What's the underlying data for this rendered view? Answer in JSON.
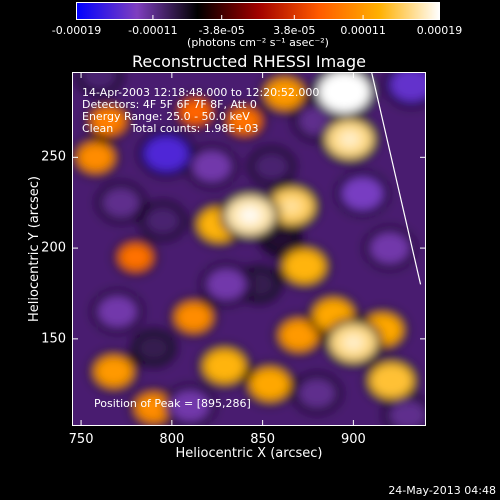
{
  "chart_data": {
    "type": "heatmap",
    "title": "Reconstructed RHESSI Image",
    "xlabel": "Heliocentric X (arcsec)",
    "ylabel": "Heliocentric Y (arcsec)",
    "xlim": [
      745,
      940
    ],
    "ylim": [
      102,
      297
    ],
    "x_ticks": [
      750,
      800,
      850,
      900
    ],
    "y_ticks": [
      150,
      200,
      250
    ],
    "colorbar": {
      "ticks": [
        -0.00019,
        -0.00011,
        -3.8e-05,
        3.8e-05,
        0.00011,
        0.00019
      ],
      "tick_labels": [
        "-0.00019",
        "-0.00011",
        "-3.8e-05",
        "3.8e-05",
        "0.00011",
        "0.00019"
      ],
      "range": [
        -0.00019,
        0.00019
      ],
      "unit_label": "(photons cm⁻² s⁻¹ asec⁻²)",
      "colors": [
        "#0000ff",
        "#7f3fbf",
        "#000000",
        "#a00000",
        "#ff5a00",
        "#ffb000",
        "#ffffff"
      ]
    },
    "annotations": {
      "time_range": "14-Apr-2003 12:18:48.000 to 12:20:52.000",
      "detectors": "Detectors: 4F 5F 6F 7F 8F, Att 0",
      "energy_range": "Energy Range: 25.0 - 50.0 keV",
      "clean_counts": "Clean     Total counts: 1.98E+03",
      "peak": "Position of Peak = [895,286]"
    },
    "limb_line": {
      "x": [
        910,
        937
      ],
      "y": [
        297,
        180
      ]
    },
    "sources": [
      {
        "x": 843,
        "y": 218,
        "value": 0.00017
      },
      {
        "x": 826,
        "y": 213,
        "value": 0.00013
      },
      {
        "x": 866,
        "y": 223,
        "value": 0.00015
      },
      {
        "x": 895,
        "y": 286,
        "value": 0.00019
      },
      {
        "x": 898,
        "y": 260,
        "value": 0.00016
      },
      {
        "x": 900,
        "y": 148,
        "value": 0.00016
      },
      {
        "x": 916,
        "y": 155,
        "value": 0.00012
      },
      {
        "x": 873,
        "y": 190,
        "value": 0.00013
      },
      {
        "x": 889,
        "y": 163,
        "value": 0.00012
      },
      {
        "x": 829,
        "y": 135,
        "value": 0.00013
      },
      {
        "x": 854,
        "y": 125,
        "value": 0.00012
      },
      {
        "x": 870,
        "y": 152,
        "value": 0.00011
      },
      {
        "x": 812,
        "y": 162,
        "value": 0.0001
      },
      {
        "x": 768,
        "y": 132,
        "value": 0.00011
      },
      {
        "x": 790,
        "y": 112,
        "value": 0.0001
      },
      {
        "x": 758,
        "y": 250,
        "value": 0.0001
      },
      {
        "x": 765,
        "y": 270,
        "value": 9e-05
      },
      {
        "x": 862,
        "y": 285,
        "value": 0.00011
      },
      {
        "x": 840,
        "y": 270,
        "value": 8e-05
      },
      {
        "x": 780,
        "y": 195,
        "value": 8e-05
      },
      {
        "x": 921,
        "y": 127,
        "value": 0.00014
      },
      {
        "x": 813,
        "y": 275,
        "value": 7e-05
      },
      {
        "x": 770,
        "y": 165,
        "value": -0.00012
      },
      {
        "x": 797,
        "y": 252,
        "value": -0.00015
      },
      {
        "x": 772,
        "y": 225,
        "value": -0.00011
      },
      {
        "x": 822,
        "y": 245,
        "value": -0.00012
      },
      {
        "x": 855,
        "y": 245,
        "value": -0.0001
      },
      {
        "x": 830,
        "y": 180,
        "value": -0.00012
      },
      {
        "x": 905,
        "y": 230,
        "value": -0.00013
      },
      {
        "x": 880,
        "y": 270,
        "value": -0.00011
      },
      {
        "x": 920,
        "y": 200,
        "value": -0.00012
      },
      {
        "x": 810,
        "y": 113,
        "value": -0.00012
      },
      {
        "x": 880,
        "y": 120,
        "value": -0.00011
      },
      {
        "x": 848,
        "y": 180,
        "value": -9e-05
      },
      {
        "x": 760,
        "y": 295,
        "value": -0.0001
      },
      {
        "x": 932,
        "y": 290,
        "value": -0.00014
      },
      {
        "x": 795,
        "y": 215,
        "value": -0.0001
      },
      {
        "x": 930,
        "y": 108,
        "value": -0.00011
      },
      {
        "x": 860,
        "y": 205,
        "value": -8e-05
      },
      {
        "x": 790,
        "y": 145,
        "value": -9e-05
      }
    ]
  },
  "timestamp": "24-May-2013 04:48"
}
